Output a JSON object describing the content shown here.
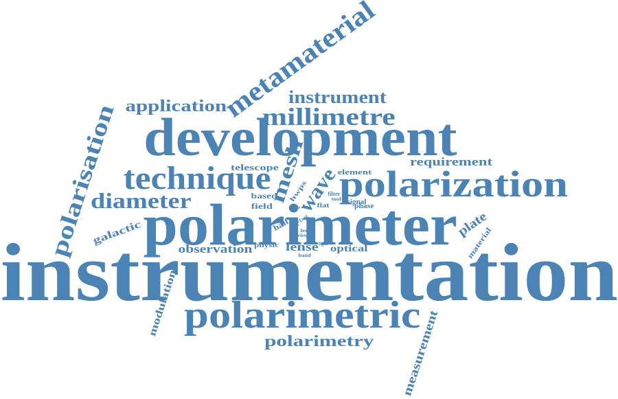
{
  "word_cloud": {
    "color": "#4a83b4",
    "words": [
      {
        "key": "instrumentation",
        "text": "instrumentation"
      },
      {
        "key": "polarimeter",
        "text": "polarimeter"
      },
      {
        "key": "development",
        "text": "development"
      },
      {
        "key": "polarization",
        "text": "polarization"
      },
      {
        "key": "polarimetric",
        "text": "polarimetric"
      },
      {
        "key": "technique",
        "text": "technique"
      },
      {
        "key": "metamaterial",
        "text": "metamaterial"
      },
      {
        "key": "polarisation",
        "text": "polarisation"
      },
      {
        "key": "millimetre",
        "text": "millimetre"
      },
      {
        "key": "diameter",
        "text": "diameter"
      },
      {
        "key": "instrument",
        "text": "instrument"
      },
      {
        "key": "application",
        "text": "application"
      },
      {
        "key": "polarimetry",
        "text": "polarimetry"
      },
      {
        "key": "mesh",
        "text": "mesh"
      },
      {
        "key": "wave",
        "text": "wave"
      },
      {
        "key": "requirement",
        "text": "requirement"
      },
      {
        "key": "measurement",
        "text": "measurement"
      },
      {
        "key": "modulation",
        "text": "modulation"
      },
      {
        "key": "observation",
        "text": "observation"
      },
      {
        "key": "lense",
        "text": "lense"
      },
      {
        "key": "plate",
        "text": "plate"
      },
      {
        "key": "galactic",
        "text": "galactic"
      },
      {
        "key": "telescope",
        "text": "telescope"
      },
      {
        "key": "optical",
        "text": "optical"
      },
      {
        "key": "material",
        "text": "material"
      },
      {
        "key": "half",
        "text": "half"
      },
      {
        "key": "based",
        "text": "based"
      },
      {
        "key": "field",
        "text": "field"
      },
      {
        "key": "element",
        "text": "element"
      },
      {
        "key": "physic",
        "text": "physic"
      },
      {
        "key": "hwps",
        "text": "hwps"
      },
      {
        "key": "signal",
        "text": "signal"
      },
      {
        "key": "phase",
        "text": "phase"
      },
      {
        "key": "filter",
        "text": "filter"
      },
      {
        "key": "tool",
        "text": "tool"
      },
      {
        "key": "flat",
        "text": "flat"
      },
      {
        "key": "map",
        "text": "map"
      },
      {
        "key": "fast",
        "text": "fast"
      },
      {
        "key": "len",
        "text": "len"
      },
      {
        "key": "view",
        "text": "view"
      },
      {
        "key": "type",
        "text": "type"
      },
      {
        "key": "light",
        "text": "light"
      },
      {
        "key": "band",
        "text": "band"
      }
    ]
  }
}
